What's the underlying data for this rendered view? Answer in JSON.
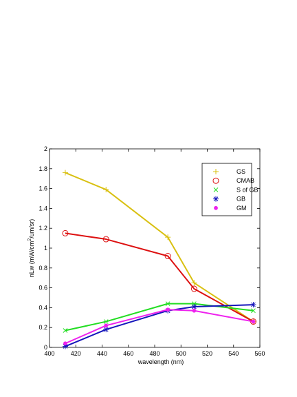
{
  "chart_data": {
    "type": "line",
    "xlabel": "wavelength (nm)",
    "ylabel_base": "nLw (mW/cm",
    "ylabel_sup": "2",
    "ylabel_rest": "/um/sr)",
    "xlim": [
      400,
      560
    ],
    "ylim": [
      0,
      2
    ],
    "xticks": [
      400,
      420,
      440,
      460,
      480,
      500,
      520,
      540,
      560
    ],
    "yticks": [
      0,
      0.2,
      0.4,
      0.6,
      0.8,
      1,
      1.2,
      1.4,
      1.6,
      1.8,
      2
    ],
    "x": [
      412,
      443,
      490,
      510,
      555
    ],
    "grid": false,
    "legend_position": "top-right",
    "series": [
      {
        "name": "GS",
        "marker": "plus",
        "color": "#d9c011",
        "values": [
          1.76,
          1.59,
          1.11,
          0.65,
          0.26
        ]
      },
      {
        "name": "CMAB",
        "marker": "circle",
        "color": "#dd1111",
        "values": [
          1.15,
          1.09,
          0.92,
          0.59,
          0.26
        ]
      },
      {
        "name": "S of GB",
        "marker": "x",
        "color": "#22dd22",
        "values": [
          0.17,
          0.26,
          0.44,
          0.44,
          0.37
        ]
      },
      {
        "name": "GB",
        "marker": "star",
        "color": "#1515bb",
        "values": [
          0.01,
          0.18,
          0.37,
          0.41,
          0.43
        ]
      },
      {
        "name": "GM",
        "marker": "dot",
        "color": "#ee22ee",
        "values": [
          0.04,
          0.22,
          0.38,
          0.37,
          0.26
        ]
      }
    ]
  }
}
